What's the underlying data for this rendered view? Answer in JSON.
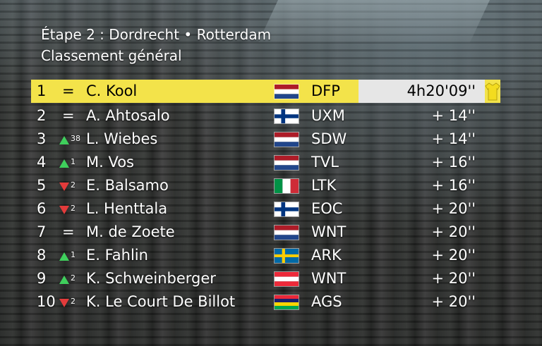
{
  "header": {
    "title": "Étape 2 : Dordrecht • Rotterdam",
    "subtitle": "Classement général"
  },
  "rows": [
    {
      "pos": "1",
      "change": "=",
      "direction": "",
      "amount": "",
      "name": "C. Kool",
      "flag": "netherlands",
      "team": "DFP",
      "time": "4h20'09''"
    },
    {
      "pos": "2",
      "change": "=",
      "direction": "",
      "amount": "",
      "name": "A. Ahtosalo",
      "flag": "finland",
      "team": "UXM",
      "time": "+ 14''"
    },
    {
      "pos": "3",
      "change": "",
      "direction": "up",
      "amount": "38",
      "name": "L. Wiebes",
      "flag": "netherlands",
      "team": "SDW",
      "time": "+ 14''"
    },
    {
      "pos": "4",
      "change": "",
      "direction": "up",
      "amount": "1",
      "name": "M. Vos",
      "flag": "netherlands",
      "team": "TVL",
      "time": "+ 16''"
    },
    {
      "pos": "5",
      "change": "",
      "direction": "down",
      "amount": "2",
      "name": "E. Balsamo",
      "flag": "italy",
      "team": "LTK",
      "time": "+ 16''"
    },
    {
      "pos": "6",
      "change": "",
      "direction": "down",
      "amount": "2",
      "name": "L. Henttala",
      "flag": "finland",
      "team": "EOC",
      "time": "+ 20''"
    },
    {
      "pos": "7",
      "change": "=",
      "direction": "",
      "amount": "",
      "name": "M. de Zoete",
      "flag": "netherlands",
      "team": "WNT",
      "time": "+ 20''"
    },
    {
      "pos": "8",
      "change": "",
      "direction": "up",
      "amount": "1",
      "name": "E. Fahlin",
      "flag": "sweden",
      "team": "ARK",
      "time": "+ 20''"
    },
    {
      "pos": "9",
      "change": "",
      "direction": "up",
      "amount": "2",
      "name": "K. Schweinberger",
      "flag": "austria",
      "team": "WNT",
      "time": "+ 20''"
    },
    {
      "pos": "10",
      "change": "",
      "direction": "down",
      "amount": "2",
      "name": "K. Le Court De Billot",
      "flag": "mauritius",
      "team": "AGS",
      "time": "+ 20''"
    }
  ],
  "colors": {
    "leader_highlight": "#f3e34a",
    "up_arrow": "#3fcf5c",
    "down_arrow": "#e33b3b"
  },
  "leader_icon": "yellow-jersey-icon"
}
